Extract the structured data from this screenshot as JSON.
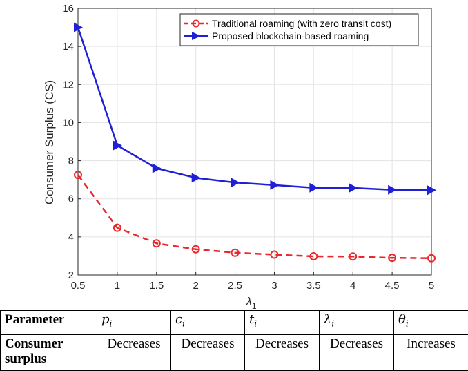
{
  "chart_data": {
    "type": "line",
    "title": "",
    "xlabel": "λ",
    "xlabel_sub": "1",
    "ylabel": "Consumer Surplus (CS)",
    "xlim": [
      0.5,
      5
    ],
    "ylim": [
      2,
      16
    ],
    "xticks": [
      "0.5",
      "1",
      "1.5",
      "2",
      "2.5",
      "3",
      "3.5",
      "4",
      "4.5",
      "5"
    ],
    "yticks": [
      "2",
      "4",
      "6",
      "8",
      "10",
      "12",
      "14",
      "16"
    ],
    "grid": true,
    "legend_position": "top-right",
    "x": [
      0.5,
      1,
      1.5,
      2,
      2.5,
      3,
      3.5,
      4,
      4.5,
      5
    ],
    "series": [
      {
        "name": "Traditional roaming (with zero transit cost)",
        "values": [
          7.25,
          4.48,
          3.66,
          3.35,
          3.17,
          3.07,
          2.98,
          2.97,
          2.9,
          2.88
        ],
        "color": "#e8262b",
        "line_style": "dashed",
        "marker": "circle"
      },
      {
        "name": "Proposed blockchain-based roaming",
        "values": [
          15.0,
          8.8,
          7.6,
          7.1,
          6.85,
          6.72,
          6.58,
          6.57,
          6.47,
          6.45
        ],
        "color": "#1f1fd6",
        "line_style": "solid",
        "marker": "triangle-right"
      }
    ]
  },
  "table": {
    "row1": {
      "header": "Parameter",
      "cells": [
        {
          "base": "p",
          "sub": "i"
        },
        {
          "base": "c",
          "sub": "i"
        },
        {
          "base": "t",
          "sub": "i"
        },
        {
          "base": "λ",
          "sub": "i"
        },
        {
          "base": "θ",
          "sub": "i"
        }
      ]
    },
    "row2": {
      "header": "Consumer surplus",
      "cells": [
        "Decreases",
        "Decreases",
        "Decreases",
        "Decreases",
        "Increases"
      ]
    }
  }
}
